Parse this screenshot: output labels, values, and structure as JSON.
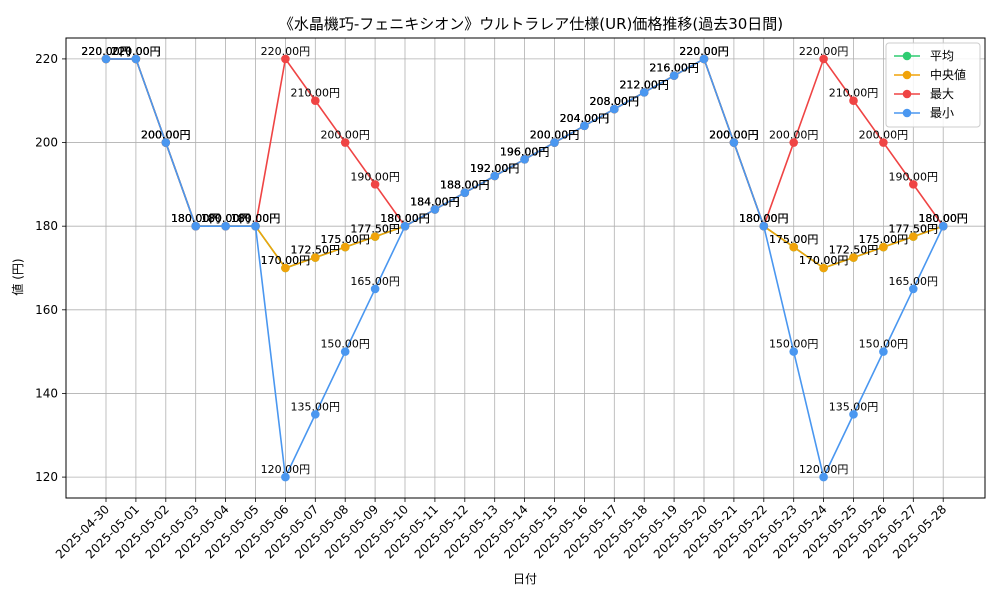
{
  "chart_data": {
    "type": "line",
    "title": "《水晶機巧-フェニキシオン》ウルトラレア仕様(UR)価格推移(過去30日間)",
    "xlabel": "日付",
    "ylabel": "値 (円)",
    "ylim": [
      115,
      225
    ],
    "yticks": [
      120,
      140,
      160,
      180,
      200,
      220
    ],
    "grid": true,
    "legend_position": "top-right",
    "label_suffix": "円",
    "categories": [
      "2025-04-30",
      "2025-05-01",
      "2025-05-02",
      "2025-05-03",
      "2025-05-04",
      "2025-05-05",
      "2025-05-06",
      "2025-05-07",
      "2025-05-08",
      "2025-05-09",
      "2025-05-10",
      "2025-05-11",
      "2025-05-12",
      "2025-05-13",
      "2025-05-14",
      "2025-05-15",
      "2025-05-16",
      "2025-05-17",
      "2025-05-18",
      "2025-05-19",
      "2025-05-20",
      "2025-05-21",
      "2025-05-22",
      "2025-05-23",
      "2025-05-24",
      "2025-05-25",
      "2025-05-26",
      "2025-05-27",
      "2025-05-28"
    ],
    "series": [
      {
        "name": "平均",
        "color": "#2ecc71",
        "values": [
          220,
          220,
          200,
          180,
          180,
          180,
          170,
          172.5,
          175,
          177.5,
          180,
          184,
          188,
          192,
          196,
          200,
          204,
          208,
          212,
          216,
          220,
          200,
          180,
          175,
          170,
          172.5,
          175,
          177.5,
          180
        ]
      },
      {
        "name": "中央値",
        "color": "#f0a30a",
        "values": [
          220,
          220,
          200,
          180,
          180,
          180,
          170,
          172.5,
          175,
          177.5,
          180,
          184,
          188,
          192,
          196,
          200,
          204,
          208,
          212,
          216,
          220,
          200,
          180,
          175,
          170,
          172.5,
          175,
          177.5,
          180
        ]
      },
      {
        "name": "最大",
        "color": "#ef4444",
        "values": [
          220,
          220,
          200,
          180,
          180,
          180,
          220,
          210,
          200,
          190,
          180,
          184,
          188,
          192,
          196,
          200,
          204,
          208,
          212,
          216,
          220,
          200,
          180,
          200,
          220,
          210,
          200,
          190,
          180
        ]
      },
      {
        "name": "最小",
        "color": "#4a97f0",
        "values": [
          220,
          220,
          200,
          180,
          180,
          180,
          120,
          135,
          150,
          165,
          180,
          184,
          188,
          192,
          196,
          200,
          204,
          208,
          212,
          216,
          220,
          200,
          180,
          150,
          120,
          135,
          150,
          165,
          180
        ]
      }
    ]
  }
}
